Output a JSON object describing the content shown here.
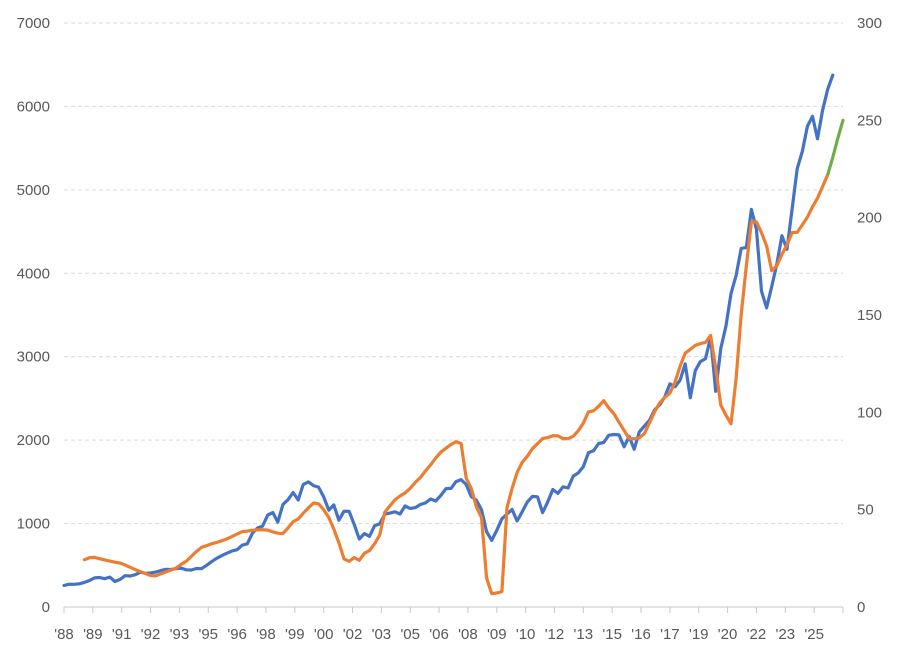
{
  "chart_data": {
    "type": "line",
    "title": "",
    "legend": "none",
    "grid": "horizontal-dashed",
    "style": {
      "background": "#FFFFFF",
      "grid_color": "#D9D9D9",
      "axis_color": "#C9C9C9",
      "label_color": "#595959"
    },
    "x": {
      "start": 1988,
      "end": 2026.25,
      "tick_intervals": 27,
      "labels": [
        "'88",
        "'89",
        "'91",
        "'92",
        "'93",
        "'95",
        "'96",
        "'98",
        "'99",
        "'00",
        "'02",
        "'03",
        "'05",
        "'06",
        "'08",
        "'09",
        "'10",
        "'12",
        "'13",
        "'15",
        "'16",
        "'17",
        "'19",
        "'20",
        "'22",
        "'23",
        "'25"
      ]
    },
    "y_left": {
      "min": 0,
      "max": 7000,
      "step": 1000
    },
    "y_right": {
      "min": 0,
      "max": 300,
      "step": 50
    },
    "series": [
      {
        "name": "blue",
        "axis": "left",
        "color": "#4472C4",
        "start": 1988.0,
        "step": 0.25,
        "values": [
          258,
          273,
          272,
          278,
          295,
          318,
          349,
          353,
          339,
          358,
          306,
          330,
          375,
          371,
          387,
          417,
          404,
          408,
          418,
          436,
          452,
          450,
          459,
          466,
          446,
          444,
          462,
          459,
          500,
          544,
          584,
          616,
          645,
          671,
          687,
          741,
          757,
          885,
          947,
          970,
          1102,
          1133,
          1017,
          1229,
          1286,
          1373,
          1283,
          1469,
          1499,
          1455,
          1436,
          1320,
          1160,
          1224,
          1041,
          1148,
          1147,
          990,
          815,
          880,
          848,
          975,
          996,
          1112,
          1126,
          1141,
          1115,
          1212,
          1181,
          1191,
          1229,
          1248,
          1295,
          1270,
          1336,
          1418,
          1421,
          1503,
          1527,
          1468,
          1323,
          1280,
          1166,
          903,
          798,
          919,
          1057,
          1115,
          1169,
          1031,
          1141,
          1258,
          1326,
          1321,
          1131,
          1258,
          1408,
          1362,
          1441,
          1426,
          1569,
          1606,
          1682,
          1848,
          1872,
          1960,
          1972,
          2059,
          2068,
          2063,
          1920,
          2044,
          1890,
          2099,
          2168,
          2239,
          2363,
          2423,
          2519,
          2674,
          2641,
          2718,
          2914,
          2507,
          2834,
          2942,
          2977,
          3231,
          2585,
          3100,
          3363,
          3756,
          3973,
          4298,
          4308,
          4766,
          4530,
          3785,
          3586,
          3840,
          4109,
          4450,
          4288,
          4770,
          5254,
          5460,
          5762,
          5882,
          5612,
          5955,
          6205,
          6376
        ]
      },
      {
        "name": "orange",
        "axis": "right",
        "color": "#ED7D31",
        "start": 1989.0,
        "step": 0.25,
        "values": [
          24.3,
          25.3,
          25.5,
          24.8,
          24.2,
          23.6,
          23.0,
          22.6,
          21.6,
          20.4,
          19.2,
          18.2,
          17.2,
          16.2,
          16.0,
          17.0,
          18.0,
          19.0,
          20.0,
          21.9,
          23.5,
          26.0,
          28.5,
          30.6,
          31.5,
          32.5,
          33.2,
          34.0,
          35.0,
          36.2,
          37.5,
          38.7,
          39.0,
          39.4,
          39.6,
          39.7,
          39.5,
          38.6,
          37.9,
          37.7,
          40.6,
          43.8,
          45.2,
          48.2,
          50.9,
          53.4,
          53.0,
          50.0,
          46.0,
          40.0,
          33.0,
          24.7,
          23.5,
          25.4,
          24.0,
          27.6,
          29.0,
          32.5,
          37.0,
          48.7,
          52.0,
          55.0,
          57.0,
          58.6,
          61.0,
          64.0,
          66.5,
          69.9,
          73.0,
          76.5,
          79.5,
          81.5,
          83.5,
          84.9,
          84.0,
          66.2,
          60.9,
          51.4,
          45.9,
          14.9,
          6.9,
          7.2,
          7.9,
          51.0,
          60.9,
          69.1,
          74.3,
          77.4,
          81.3,
          83.9,
          86.5,
          87.0,
          88.0,
          87.9,
          86.5,
          86.5,
          87.7,
          90.5,
          94.4,
          100.2,
          100.8,
          103.1,
          106.0,
          102.3,
          99.3,
          94.9,
          90.7,
          86.5,
          86.4,
          86.9,
          89.1,
          94.6,
          100.3,
          104.9,
          107.7,
          109.9,
          115.5,
          123.7,
          130.4,
          132.4,
          134.4,
          135.3,
          135.9,
          139.5,
          122.7,
          103.7,
          98.6,
          94.1,
          117.3,
          150.2,
          175.1,
          197.9,
          197.9,
          192.3,
          185.5,
          172.8,
          175.2,
          181.2,
          186.0,
          192.4,
          192.5,
          196.3,
          200.3,
          205.6,
          210.0,
          216.0,
          222.0
        ]
      },
      {
        "name": "green",
        "axis": "right",
        "color": "#70AD47",
        "start": 2025.5,
        "step": 0.25,
        "values": [
          222,
          231,
          241,
          250
        ]
      }
    ]
  }
}
